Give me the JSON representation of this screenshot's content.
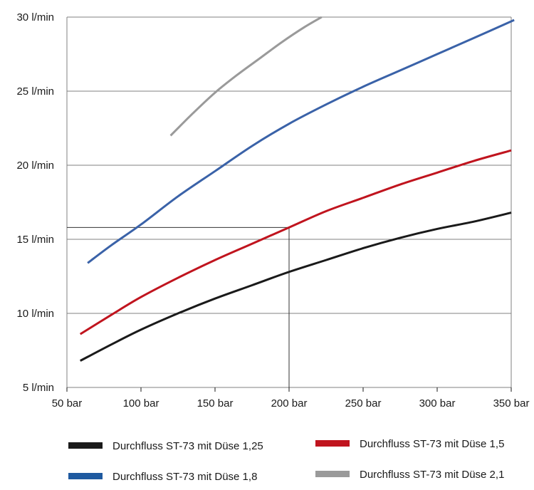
{
  "chart_data": {
    "type": "line",
    "title": "",
    "xlabel": "",
    "ylabel": "",
    "xlim": [
      50,
      350
    ],
    "ylim": [
      5,
      30
    ],
    "grid": true,
    "x_ticks": [
      50,
      100,
      150,
      200,
      250,
      300,
      350
    ],
    "x_tick_labels": [
      "50 bar",
      "100 bar",
      "150 bar",
      "200 bar",
      "250 bar",
      "300 bar",
      "350 bar"
    ],
    "y_ticks": [
      5,
      10,
      15,
      20,
      25,
      30
    ],
    "y_tick_labels": [
      "5 l/min",
      "10 l/min",
      "15 l/min",
      "20 l/min",
      "25 l/min",
      "30 l/min"
    ],
    "legend_position": "bottom",
    "series": [
      {
        "name": "Durchfluss ST-73 mit Düse 1,25",
        "color": "#1a1a1a",
        "x": [
          59,
          80,
          100,
          125,
          150,
          175,
          200,
          225,
          250,
          275,
          300,
          325,
          350
        ],
        "y": [
          6.8,
          7.9,
          8.9,
          10.0,
          11.0,
          11.9,
          12.8,
          13.6,
          14.4,
          15.1,
          15.7,
          16.2,
          16.8
        ]
      },
      {
        "name": "Durchfluss ST-73 mit Düse 1,5",
        "color": "#c0141e",
        "x": [
          59,
          80,
          100,
          125,
          150,
          175,
          200,
          225,
          250,
          275,
          300,
          325,
          350
        ],
        "y": [
          8.6,
          9.9,
          11.1,
          12.4,
          13.6,
          14.7,
          15.8,
          16.9,
          17.8,
          18.7,
          19.5,
          20.3,
          21.0
        ]
      },
      {
        "name": "Durchfluss ST-73 mit Düse 1,8",
        "color": "#3a62a8",
        "x": [
          64,
          80,
          100,
          125,
          150,
          175,
          200,
          225,
          250,
          275,
          300,
          325,
          352
        ],
        "y": [
          13.4,
          14.6,
          16.0,
          17.9,
          19.6,
          21.3,
          22.8,
          24.1,
          25.3,
          26.4,
          27.5,
          28.6,
          29.8
        ]
      },
      {
        "name": "Durchfluss ST-73 mit Düse 2,1",
        "color": "#9a9a9a",
        "x": [
          120,
          135,
          150,
          165,
          180,
          195,
          210,
          222
        ],
        "y": [
          22.0,
          23.5,
          24.9,
          26.1,
          27.2,
          28.3,
          29.3,
          30.0
        ]
      }
    ],
    "annotations": [
      {
        "type": "reference_lines",
        "x": 200,
        "y": 15.8
      }
    ]
  },
  "legend": {
    "item1": "Durchfluss ST-73 mit Düse 1,25",
    "item2": "Durchfluss ST-73 mit Düse 1,5",
    "item3": "Durchfluss ST-73 mit Düse 1,8",
    "item4": "Durchfluss ST-73 mit Düse 2,1"
  },
  "colors": {
    "grid": "#808080",
    "reference": "#333333"
  }
}
